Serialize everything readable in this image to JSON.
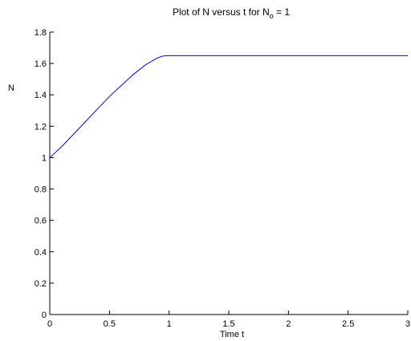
{
  "chart_data": {
    "type": "line",
    "title": {
      "prefix": "Plot of N versus t for N",
      "subscript": "o",
      "suffix": " = 1"
    },
    "xlabel": "Time t",
    "ylabel": "N",
    "xlim": [
      0,
      3
    ],
    "ylim": [
      0,
      1.8
    ],
    "xticks": [
      0,
      0.5,
      1,
      1.5,
      2,
      2.5,
      3
    ],
    "yticks": [
      0,
      0.2,
      0.4,
      0.6,
      0.8,
      1,
      1.2,
      1.4,
      1.6,
      1.8
    ],
    "xtick_labels": [
      "0",
      "0.5",
      "1",
      "1.5",
      "2",
      "2.5",
      "3"
    ],
    "ytick_labels": [
      "0",
      "0.2",
      "0.4",
      "0.6",
      "0.8",
      "1",
      "1.2",
      "1.4",
      "1.6",
      "1.8"
    ],
    "grid": false,
    "series": [
      {
        "color": "#0000ff",
        "x": [
          0,
          0.1,
          0.2,
          0.3,
          0.4,
          0.5,
          0.6,
          0.7,
          0.8,
          0.9,
          0.95,
          1.0,
          1.5,
          2.0,
          2.5,
          3.0
        ],
        "y": [
          1.0,
          1.07,
          1.15,
          1.23,
          1.31,
          1.39,
          1.46,
          1.53,
          1.59,
          1.635,
          1.648,
          1.65,
          1.65,
          1.65,
          1.65,
          1.65
        ]
      }
    ]
  }
}
